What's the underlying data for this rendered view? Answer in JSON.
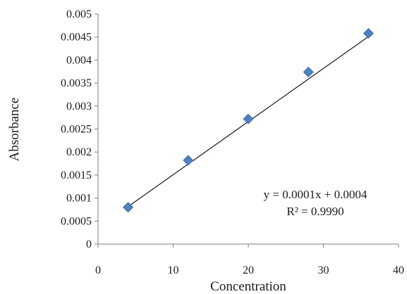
{
  "chart_data": {
    "type": "scatter",
    "xlabel": "Concentration",
    "ylabel": "Absorbance",
    "xlim": [
      0,
      40
    ],
    "ylim": [
      0,
      0.005
    ],
    "x_ticks": [
      "0",
      "10",
      "20",
      "30",
      "40"
    ],
    "y_ticks": [
      "0",
      "0.0005",
      "0.001",
      "0.0015",
      "0.002",
      "0.0025",
      "0.003",
      "0.0035",
      "0.004",
      "0.0045",
      "0.005"
    ],
    "x": [
      4,
      12,
      20,
      28,
      36
    ],
    "y": [
      0.0008,
      0.00182,
      0.00272,
      0.00374,
      0.00458
    ],
    "marker_color": "#4f81bd",
    "trendline": {
      "slope": 0.0001155,
      "intercept": 0.0003525,
      "equation_label": "y = 0.0001x + 0.0004",
      "r2_label": "R² = 0.9990",
      "color": "#1a1a1a"
    },
    "grid": false,
    "legend": "none"
  }
}
